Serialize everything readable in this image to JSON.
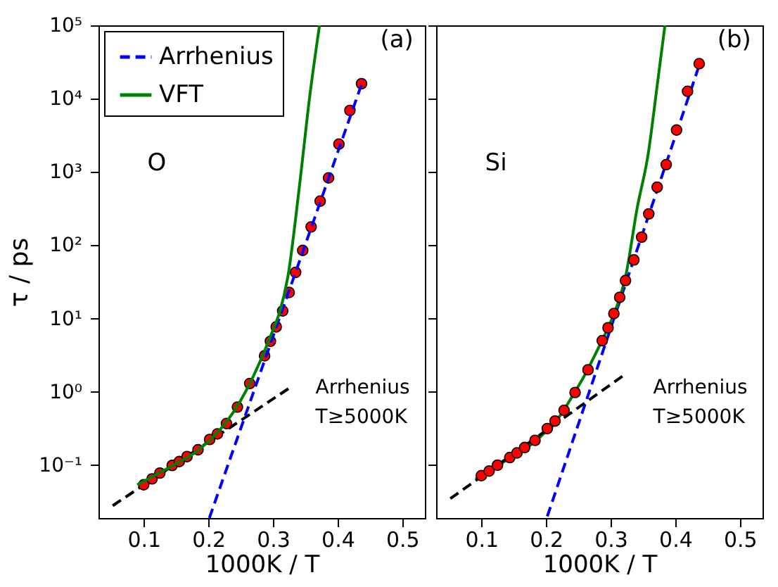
{
  "chart_data": [
    {
      "type": "scatter",
      "xlabel": "1000K / T",
      "ylabel": "τ / ps",
      "legend": "top left",
      "log": "y",
      "xlim": [
        0.03,
        0.535
      ],
      "xticks": [
        0.1,
        0.2,
        0.3,
        0.4,
        0.5
      ],
      "ylim": [
        0.019,
        100000
      ],
      "yticks": [
        {
          "value": 0.1,
          "label": "10⁻¹"
        },
        {
          "value": 1,
          "label": "10⁰"
        },
        {
          "value": 10,
          "label": "10¹"
        },
        {
          "value": 100,
          "label": "10²"
        },
        {
          "value": 1000,
          "label": "10³"
        },
        {
          "value": 10000,
          "label": "10⁴"
        },
        {
          "value": 100000,
          "label": "10⁵"
        }
      ],
      "annotations": [
        "(a)",
        "O",
        "Arrhenius",
        "T≥5000K"
      ],
      "series": [
        {
          "type": "line",
          "name": "Arrhenius",
          "color": "#0000ff",
          "line_style": "dashed",
          "marker": "none",
          "x": [
            0.2015,
            0.44
          ],
          "values": [
            0.019,
            18600
          ]
        },
        {
          "type": "line",
          "name": "VFT",
          "color": "#008000",
          "line_style": "solid",
          "marker": "none",
          "x": [
            0.09,
            0.12,
            0.15,
            0.18,
            0.2,
            0.22,
            0.24,
            0.26,
            0.28,
            0.3,
            0.31,
            0.323,
            0.341,
            0.357,
            0.372
          ],
          "values": [
            0.054,
            0.075,
            0.105,
            0.15,
            0.21,
            0.32,
            0.55,
            1.1,
            2.6,
            7,
            12,
            37,
            650,
            11000,
            100000
          ]
        },
        {
          "type": "line",
          "color": "#000000",
          "line_style": "dashed",
          "marker": "none",
          "x": [
            0.052,
            0.33
          ],
          "values": [
            0.028,
            1.2
          ]
        },
        {
          "color": "#ff0000",
          "marker": "circle",
          "x": [
            0.1,
            0.113,
            0.125,
            0.144,
            0.155,
            0.167,
            0.184,
            0.202,
            0.214,
            0.228,
            0.245,
            0.264,
            0.287,
            0.296,
            0.305,
            0.315,
            0.325,
            0.335,
            0.346,
            0.359,
            0.373,
            0.386,
            0.402,
            0.419,
            0.437
          ],
          "values": [
            0.054,
            0.065,
            0.078,
            0.099,
            0.112,
            0.131,
            0.162,
            0.224,
            0.267,
            0.37,
            0.62,
            1.3,
            3.1,
            4.9,
            7.7,
            12.7,
            22.7,
            42.7,
            85,
            178,
            400,
            830,
            2400,
            6900,
            16000
          ]
        }
      ]
    },
    {
      "type": "scatter",
      "xlabel": "1000K / T",
      "log": "y",
      "tick_labels": "x",
      "xlim": [
        0.03,
        0.535
      ],
      "xticks": [
        0.1,
        0.2,
        0.3,
        0.4,
        0.5
      ],
      "ylim": [
        0.019,
        100000
      ],
      "yticks": [
        {
          "value": 0.1,
          "label": null
        },
        {
          "value": 1,
          "label": null
        },
        {
          "value": 10,
          "label": null
        },
        {
          "value": 100,
          "label": null
        },
        {
          "value": 1000,
          "label": null
        },
        {
          "value": 10000,
          "label": null
        },
        {
          "value": 100000,
          "label": null
        }
      ],
      "annotations": [
        "(b)",
        "Si",
        "Arrhenius",
        "T≥5000K"
      ],
      "series": [
        {
          "type": "line",
          "color": "#0000ff",
          "line_style": "dashed",
          "marker": "none",
          "x": [
            0.202,
            0.44
          ],
          "values": [
            0.02,
            34000
          ]
        },
        {
          "type": "line",
          "color": "#008000",
          "line_style": "solid",
          "marker": "none",
          "x": [
            0.091,
            0.12,
            0.15,
            0.18,
            0.2,
            0.22,
            0.24,
            0.26,
            0.28,
            0.3,
            0.31,
            0.323,
            0.341,
            0.358,
            0.372,
            0.384
          ],
          "values": [
            0.065,
            0.092,
            0.135,
            0.2,
            0.29,
            0.45,
            0.85,
            1.7,
            3.8,
            9,
            15,
            37,
            320,
            1740,
            15000,
            100000
          ]
        },
        {
          "type": "line",
          "color": "#000000",
          "line_style": "dashed",
          "marker": "none",
          "x": [
            0.052,
            0.325
          ],
          "values": [
            0.035,
            1.8
          ]
        },
        {
          "color": "#ff0000",
          "marker": "circle",
          "x": [
            0.1,
            0.112,
            0.125,
            0.144,
            0.155,
            0.167,
            0.183,
            0.202,
            0.214,
            0.228,
            0.245,
            0.265,
            0.287,
            0.296,
            0.305,
            0.314,
            0.323,
            0.336,
            0.348,
            0.359,
            0.372,
            0.386,
            0.402,
            0.419,
            0.437
          ],
          "values": [
            0.072,
            0.083,
            0.1,
            0.127,
            0.147,
            0.174,
            0.218,
            0.316,
            0.4,
            0.56,
            0.98,
            2.0,
            5.0,
            7.5,
            11.7,
            19.5,
            33,
            63,
            129,
            268,
            620,
            1260,
            3730,
            12600,
            30000
          ]
        }
      ]
    }
  ]
}
